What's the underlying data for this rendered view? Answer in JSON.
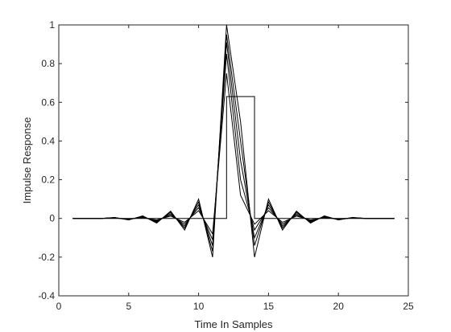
{
  "chart_data": {
    "type": "line",
    "title": "",
    "xlabel": "Time In Samples",
    "ylabel": "Impulse Response",
    "xlim": [
      0,
      25
    ],
    "ylim": [
      -0.4,
      1
    ],
    "xticks": [
      0,
      5,
      10,
      15,
      20,
      25
    ],
    "yticks": [
      -0.4,
      -0.2,
      0,
      0.2,
      0.4,
      0.6,
      0.8,
      1
    ],
    "ytick_labels": [
      "-0.4",
      "-0.2",
      "0",
      "0.2",
      "0.4",
      "0.6",
      "0.8",
      "1"
    ],
    "xtick_labels": [
      "0",
      "5",
      "10",
      "15",
      "20",
      "25"
    ],
    "grid": false,
    "legend": "none",
    "line_color": "#000000",
    "series": [
      {
        "x": [
          1,
          2,
          3,
          4,
          5,
          6,
          7,
          8,
          9,
          10,
          11,
          12,
          13,
          14,
          15,
          16,
          17,
          18,
          19,
          20,
          21,
          22,
          23,
          24
        ],
        "values": [
          0,
          0,
          0,
          0,
          0,
          0,
          0,
          0,
          0,
          0,
          0,
          0.63,
          0.63,
          0,
          0,
          0,
          0,
          0,
          0,
          0,
          0,
          0,
          0,
          0
        ],
        "step": true
      },
      {
        "x": [
          1,
          2,
          3,
          4,
          5,
          6,
          7,
          8,
          9,
          10,
          11,
          12,
          13,
          14,
          15,
          16,
          17,
          18,
          19,
          20,
          21,
          22,
          23,
          24
        ],
        "values": [
          0,
          0,
          0,
          0.002,
          -0.003,
          0.004,
          -0.008,
          0.012,
          -0.02,
          0.04,
          -0.08,
          0.75,
          0.12,
          -0.03,
          0.04,
          -0.02,
          0.012,
          -0.008,
          0.004,
          -0.003,
          0.002,
          0,
          0,
          0
        ]
      },
      {
        "x": [
          1,
          2,
          3,
          4,
          5,
          6,
          7,
          8,
          9,
          10,
          11,
          12,
          13,
          14,
          15,
          16,
          17,
          18,
          19,
          20,
          21,
          22,
          23,
          24
        ],
        "values": [
          0,
          0,
          0,
          0.003,
          -0.004,
          0.006,
          -0.012,
          0.018,
          -0.03,
          0.055,
          -0.11,
          0.85,
          0.2,
          -0.06,
          0.055,
          -0.03,
          0.018,
          -0.012,
          0.006,
          -0.004,
          0.003,
          0,
          0,
          0
        ]
      },
      {
        "x": [
          1,
          2,
          3,
          4,
          5,
          6,
          7,
          8,
          9,
          10,
          11,
          12,
          13,
          14,
          15,
          16,
          17,
          18,
          19,
          20,
          21,
          22,
          23,
          24
        ],
        "values": [
          0,
          0,
          0,
          0.004,
          -0.006,
          0.009,
          -0.016,
          0.025,
          -0.04,
          0.07,
          -0.14,
          0.91,
          0.3,
          -0.1,
          0.07,
          -0.04,
          0.025,
          -0.016,
          0.009,
          -0.006,
          0.004,
          0,
          0,
          0
        ]
      },
      {
        "x": [
          1,
          2,
          3,
          4,
          5,
          6,
          7,
          8,
          9,
          10,
          11,
          12,
          13,
          14,
          15,
          16,
          17,
          18,
          19,
          20,
          21,
          22,
          23,
          24
        ],
        "values": [
          0,
          0,
          0,
          0.004,
          -0.007,
          0.011,
          -0.02,
          0.032,
          -0.05,
          0.085,
          -0.17,
          0.95,
          0.4,
          -0.14,
          0.085,
          -0.05,
          0.032,
          -0.02,
          0.011,
          -0.007,
          0.004,
          0,
          0,
          0
        ]
      },
      {
        "x": [
          1,
          2,
          3,
          4,
          5,
          6,
          7,
          8,
          9,
          10,
          11,
          12,
          13,
          14,
          15,
          16,
          17,
          18,
          19,
          20,
          21,
          22,
          23,
          24
        ],
        "values": [
          0,
          0,
          0,
          0.005,
          -0.008,
          0.013,
          -0.024,
          0.038,
          -0.06,
          0.1,
          -0.2,
          1.0,
          0.5,
          -0.2,
          0.1,
          -0.06,
          0.038,
          -0.024,
          0.013,
          -0.008,
          0.005,
          0,
          0,
          0
        ]
      }
    ]
  }
}
